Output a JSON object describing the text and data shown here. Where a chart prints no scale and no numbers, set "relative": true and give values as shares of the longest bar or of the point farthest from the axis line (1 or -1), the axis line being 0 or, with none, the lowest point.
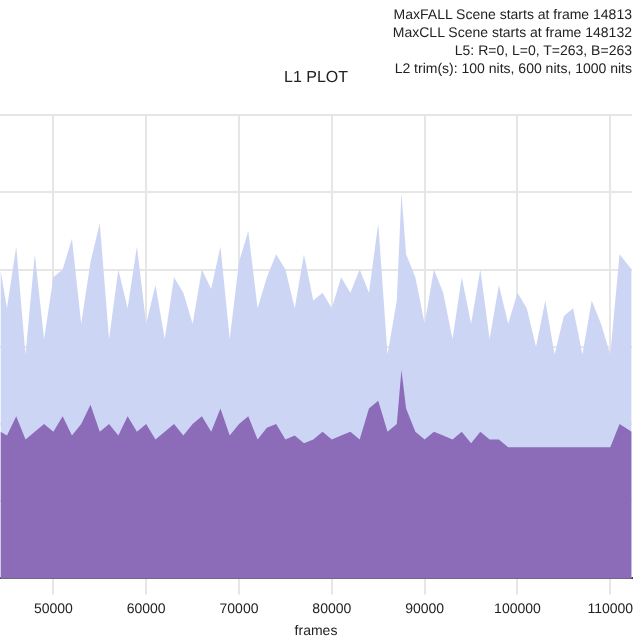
{
  "chart_data": {
    "type": "area",
    "title": "L1 PLOT",
    "xlabel": "frames",
    "relative": true,
    "grid": true,
    "legend": false,
    "marker": "none",
    "annotations": [
      "MaxFALL Scene starts at frame 14813",
      "MaxCLL Scene starts at frame 148132",
      "L5: R=0, L=0, T=263, B=263",
      "L2 trim(s): 100 nits, 600 nits, 1000 nits"
    ],
    "xlim": [
      44250,
      112340
    ],
    "xticks": [
      50000,
      60000,
      70000,
      80000,
      90000,
      100000,
      110000
    ],
    "series": [
      {
        "color": "#cdd5f5",
        "x": [
          44300,
          45000,
          46000,
          47000,
          48000,
          49000,
          50000,
          51000,
          52000,
          53000,
          54000,
          55000,
          56000,
          57000,
          58000,
          59000,
          60000,
          61000,
          62000,
          63000,
          64000,
          65000,
          66000,
          67000,
          68000,
          69000,
          70000,
          71000,
          72000,
          73000,
          74000,
          75000,
          76000,
          77000,
          78000,
          79000,
          80000,
          81000,
          82000,
          83000,
          84000,
          85000,
          86000,
          87000,
          87500,
          88000,
          89000,
          90000,
          91000,
          92000,
          93000,
          94000,
          95000,
          96000,
          97000,
          98000,
          99000,
          100000,
          101000,
          102000,
          103000,
          104000,
          105000,
          106000,
          107000,
          108000,
          109000,
          110000,
          111000,
          112300
        ],
        "values": [
          0.8,
          0.7,
          0.86,
          0.58,
          0.84,
          0.62,
          0.78,
          0.8,
          0.88,
          0.66,
          0.82,
          0.92,
          0.62,
          0.8,
          0.7,
          0.86,
          0.66,
          0.76,
          0.62,
          0.78,
          0.74,
          0.66,
          0.8,
          0.75,
          0.86,
          0.62,
          0.82,
          0.9,
          0.7,
          0.78,
          0.84,
          0.8,
          0.7,
          0.84,
          0.72,
          0.74,
          0.7,
          0.78,
          0.74,
          0.8,
          0.74,
          0.92,
          0.58,
          0.72,
          1.0,
          0.84,
          0.78,
          0.66,
          0.8,
          0.74,
          0.62,
          0.78,
          0.66,
          0.8,
          0.62,
          0.76,
          0.66,
          0.74,
          0.7,
          0.6,
          0.72,
          0.58,
          0.68,
          0.7,
          0.58,
          0.72,
          0.66,
          0.58,
          0.84,
          0.8
        ]
      },
      {
        "color": "#8c6bb8",
        "x": [
          44300,
          45000,
          46000,
          47000,
          48000,
          49000,
          50000,
          51000,
          52000,
          53000,
          54000,
          55000,
          56000,
          57000,
          58000,
          59000,
          60000,
          61000,
          62000,
          63000,
          64000,
          65000,
          66000,
          67000,
          68000,
          69000,
          70000,
          71000,
          72000,
          73000,
          74000,
          75000,
          76000,
          77000,
          78000,
          79000,
          80000,
          81000,
          82000,
          83000,
          84000,
          85000,
          86000,
          87000,
          87500,
          88000,
          89000,
          90000,
          91000,
          92000,
          93000,
          94000,
          95000,
          96000,
          97000,
          98000,
          99000,
          100000,
          101000,
          102000,
          103000,
          104000,
          105000,
          106000,
          107000,
          108000,
          109000,
          110000,
          111000,
          112300
        ],
        "values": [
          0.38,
          0.37,
          0.42,
          0.36,
          0.38,
          0.4,
          0.38,
          0.42,
          0.37,
          0.4,
          0.45,
          0.38,
          0.4,
          0.37,
          0.42,
          0.38,
          0.4,
          0.36,
          0.38,
          0.4,
          0.37,
          0.4,
          0.42,
          0.38,
          0.44,
          0.37,
          0.4,
          0.42,
          0.36,
          0.39,
          0.4,
          0.36,
          0.37,
          0.35,
          0.36,
          0.38,
          0.36,
          0.37,
          0.38,
          0.36,
          0.44,
          0.46,
          0.38,
          0.4,
          0.54,
          0.44,
          0.38,
          0.36,
          0.38,
          0.37,
          0.36,
          0.38,
          0.35,
          0.38,
          0.36,
          0.36,
          0.34,
          0.34,
          0.34,
          0.34,
          0.34,
          0.34,
          0.34,
          0.34,
          0.34,
          0.34,
          0.34,
          0.34,
          0.4,
          0.38
        ]
      }
    ]
  }
}
